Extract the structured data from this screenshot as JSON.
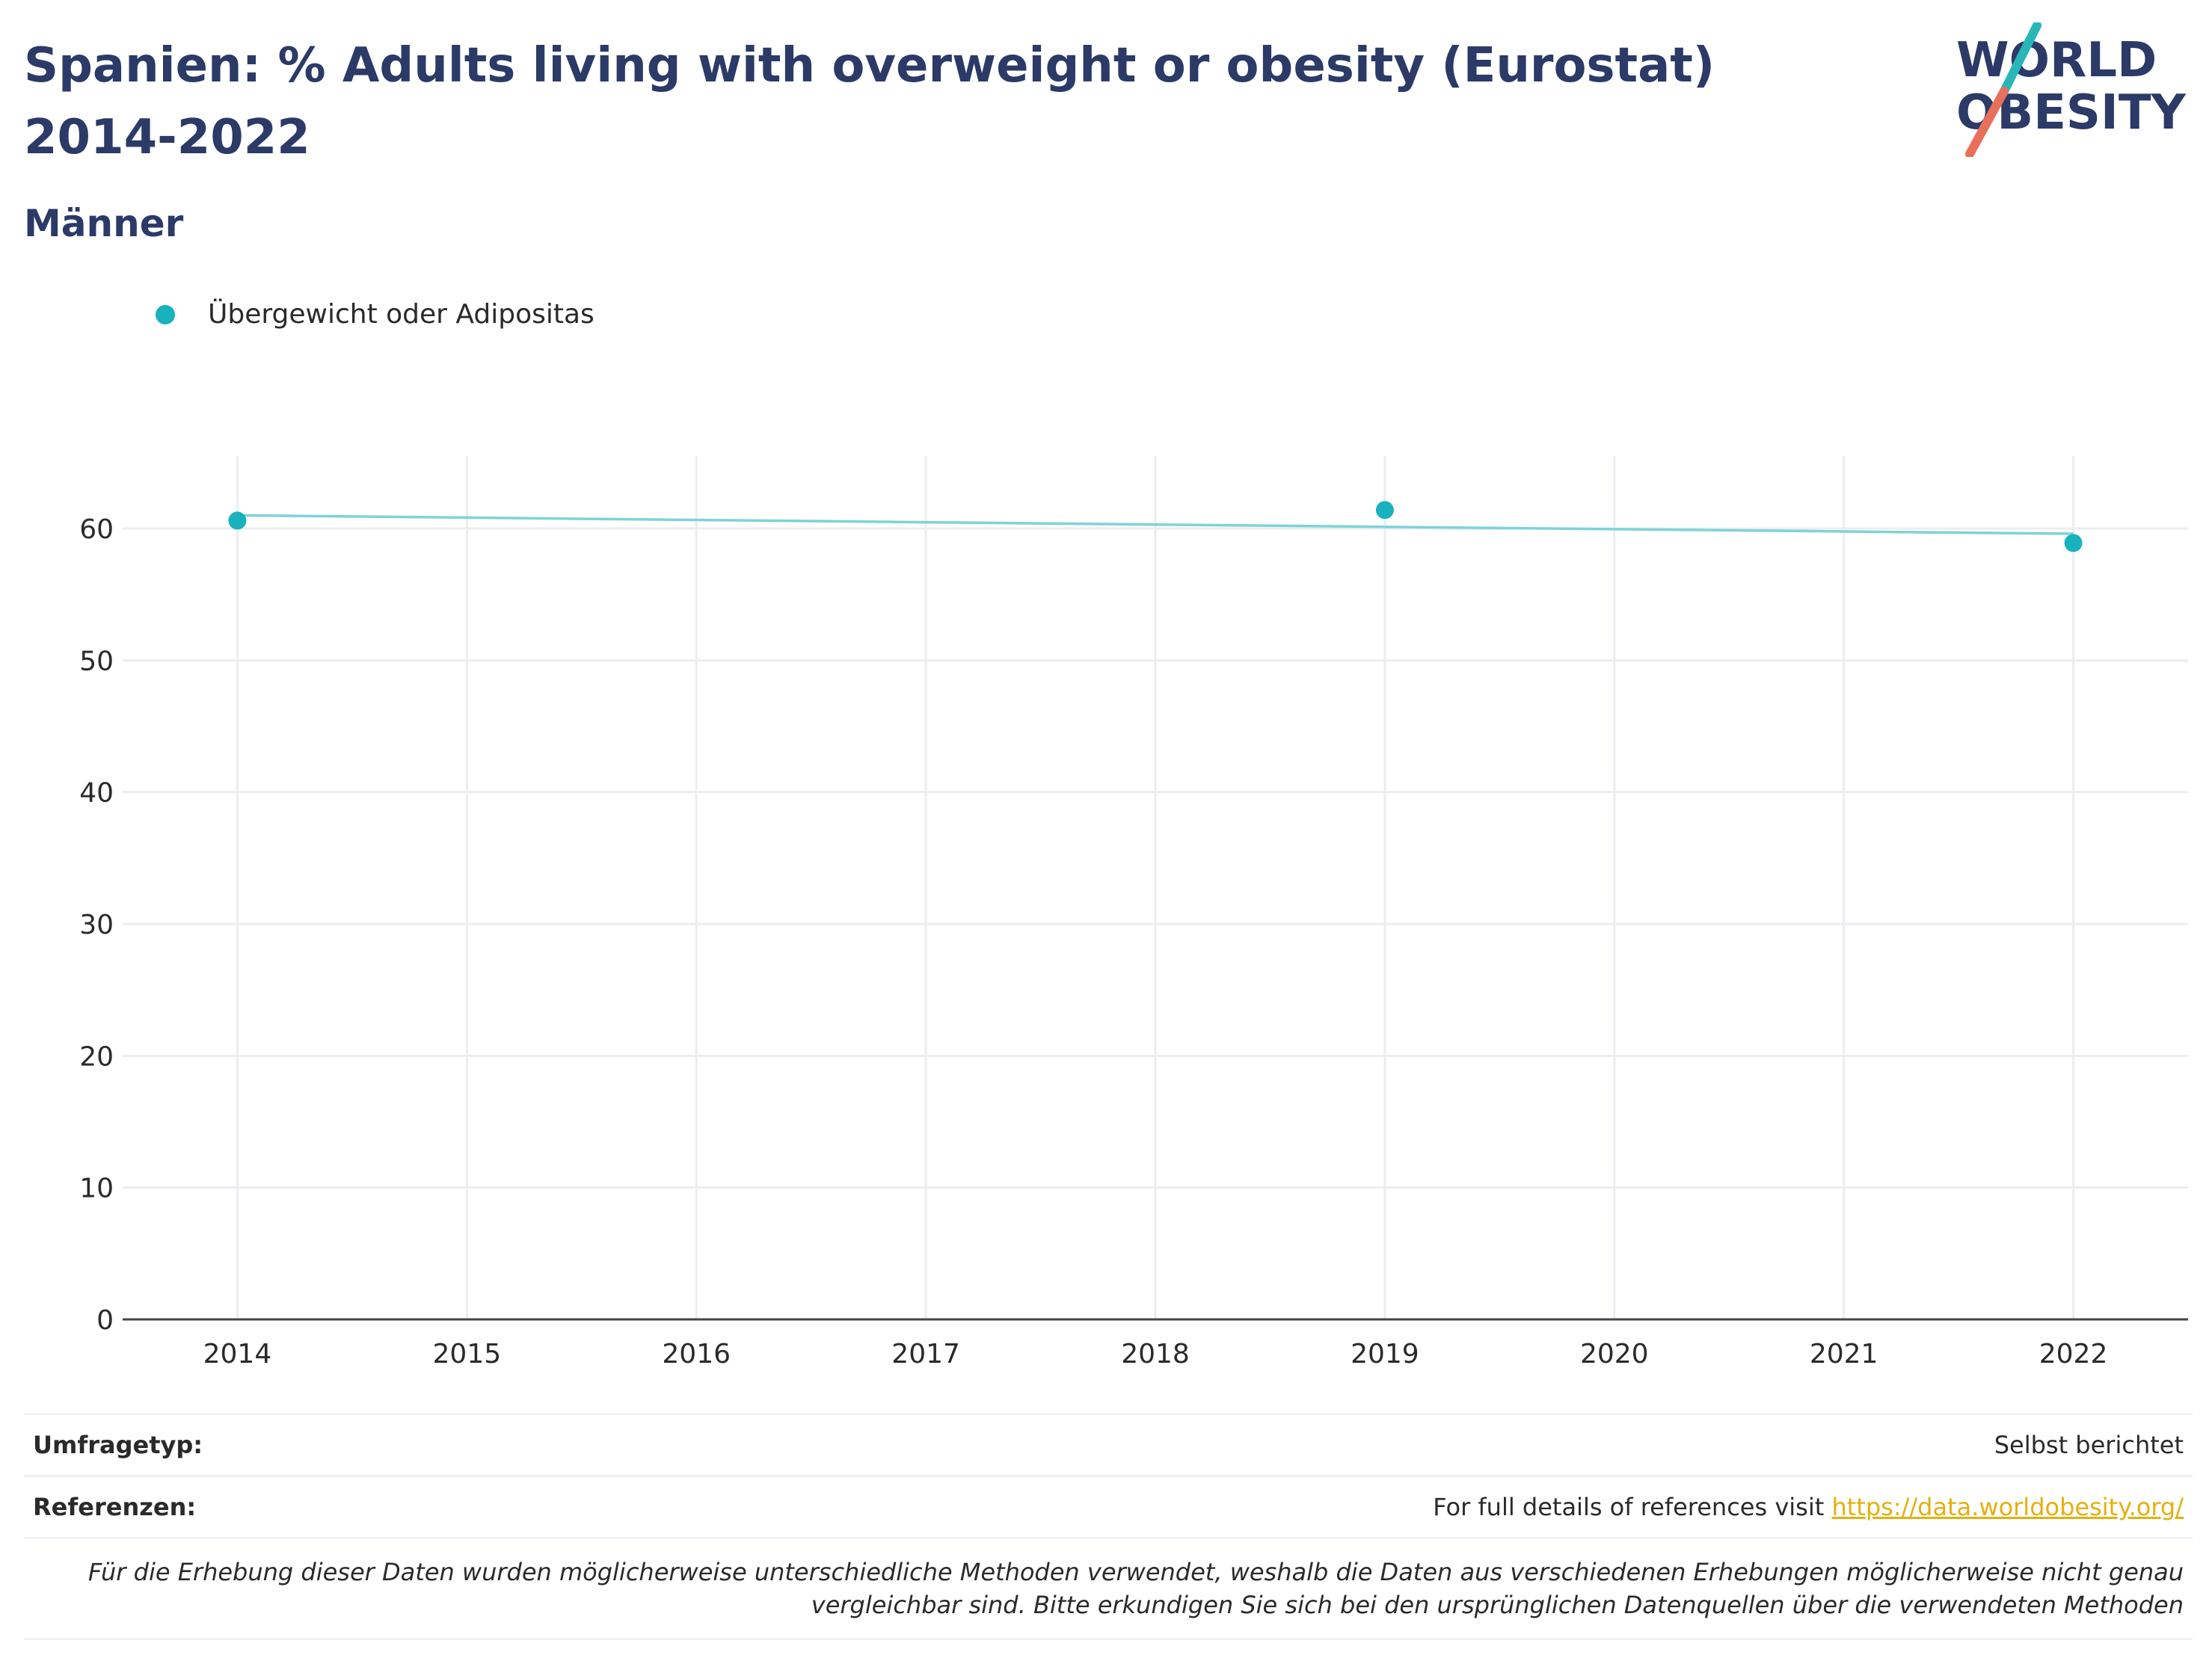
{
  "header": {
    "title": "Spanien: % Adults living with overweight or obesity (Eurostat) 2014-2022",
    "subtitle": "Männer"
  },
  "logo": {
    "line1": "WORLD",
    "line2": "OBESITY",
    "text_color": "#2b3a67",
    "slash_top_color": "#29b6b8",
    "slash_bottom_color": "#e8705a"
  },
  "chart_data": {
    "type": "scatter",
    "title": "Spanien: % Adults living with overweight or obesity (Eurostat) 2014-2022",
    "subtitle": "Männer",
    "xlabel": "",
    "ylabel": "",
    "x_ticks": [
      "2014",
      "2015",
      "2016",
      "2017",
      "2018",
      "2019",
      "2020",
      "2021",
      "2022"
    ],
    "y_ticks": [
      "0",
      "10",
      "20",
      "30",
      "40",
      "50",
      "60"
    ],
    "xlim": [
      2013.5,
      2022.5
    ],
    "ylim": [
      0,
      65.5
    ],
    "grid": true,
    "legend_position": "top-left",
    "series": [
      {
        "name": "Übergewicht oder Adipositas",
        "color": "#17b2bd",
        "x": [
          2014,
          2019,
          2022
        ],
        "y": [
          60.6,
          61.4,
          58.9
        ]
      }
    ],
    "trendline": {
      "color": "#7dd3da",
      "x": [
        2014,
        2022
      ],
      "y": [
        61.0,
        59.6
      ]
    }
  },
  "footer": {
    "survey_type_label": "Umfragetyp:",
    "survey_type_value": "Selbst berichtet",
    "references_label": "Referenzen:",
    "references_text": "For full details of references visit ",
    "references_link": "https://data.worldobesity.org/",
    "note": "Für die Erhebung dieser Daten wurden möglicherweise unterschiedliche Methoden verwendet, weshalb die Daten aus verschiedenen Erhebungen möglicherweise nicht genau vergleichbar sind. Bitte erkundigen Sie sich bei den ursprünglichen Datenquellen über die verwendeten Methoden"
  }
}
